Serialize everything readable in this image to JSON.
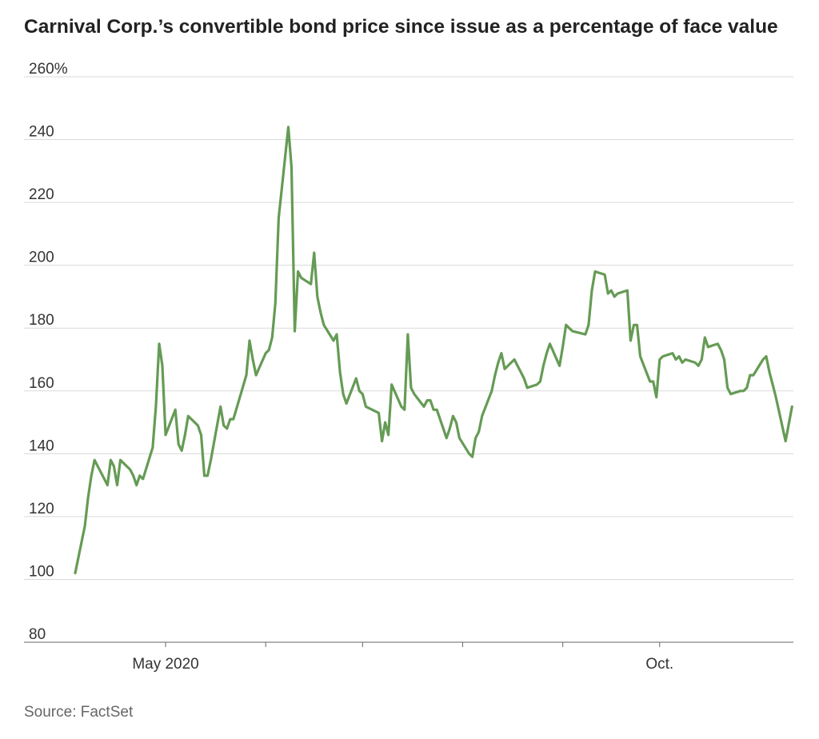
{
  "header": {
    "title": "Carnival Corp.’s convertible bond price since issue as a percentage of face value"
  },
  "footer": {
    "source": "Source: FactSet"
  },
  "colors": {
    "line": "#659b55",
    "grid": "#d9d9d9",
    "axis": "#666666"
  },
  "chart_data": {
    "type": "line",
    "title": "Carnival Corp.’s convertible bond price since issue as a percentage of face value",
    "xlabel": "",
    "ylabel": "",
    "ylim": [
      80,
      260
    ],
    "yticks": [
      {
        "value": 80,
        "label": "80"
      },
      {
        "value": 100,
        "label": "100"
      },
      {
        "value": 120,
        "label": "120"
      },
      {
        "value": 140,
        "label": "140"
      },
      {
        "value": 160,
        "label": "160"
      },
      {
        "value": 180,
        "label": "180"
      },
      {
        "value": 200,
        "label": "200"
      },
      {
        "value": 220,
        "label": "220"
      },
      {
        "value": 240,
        "label": "240"
      },
      {
        "value": 260,
        "label": "260%"
      }
    ],
    "xlim": [
      "2020-04-03",
      "2020-11-03"
    ],
    "month_ticks": [
      "2020-05-01",
      "2020-06-01",
      "2020-07-01",
      "2020-08-01",
      "2020-09-01",
      "2020-10-01"
    ],
    "xtick_labels": [
      {
        "date": "2020-05-01",
        "label": "May 2020"
      },
      {
        "date": "2020-10-01",
        "label": "Oct."
      }
    ],
    "grid": true,
    "series": [
      {
        "values": [
          [
            "2020-04-03",
            102
          ],
          [
            "2020-04-06",
            117
          ],
          [
            "2020-04-07",
            126
          ],
          [
            "2020-04-08",
            133
          ],
          [
            "2020-04-09",
            138
          ],
          [
            "2020-04-13",
            130
          ],
          [
            "2020-04-14",
            138
          ],
          [
            "2020-04-15",
            136
          ],
          [
            "2020-04-16",
            130
          ],
          [
            "2020-04-17",
            138
          ],
          [
            "2020-04-20",
            135
          ],
          [
            "2020-04-21",
            133
          ],
          [
            "2020-04-22",
            130
          ],
          [
            "2020-04-23",
            133
          ],
          [
            "2020-04-24",
            132
          ],
          [
            "2020-04-27",
            142
          ],
          [
            "2020-04-28",
            155
          ],
          [
            "2020-04-29",
            175
          ],
          [
            "2020-04-30",
            168
          ],
          [
            "2020-05-01",
            146
          ],
          [
            "2020-05-04",
            154
          ],
          [
            "2020-05-05",
            143
          ],
          [
            "2020-05-06",
            141
          ],
          [
            "2020-05-07",
            146
          ],
          [
            "2020-05-08",
            152
          ],
          [
            "2020-05-11",
            149
          ],
          [
            "2020-05-12",
            146
          ],
          [
            "2020-05-13",
            133
          ],
          [
            "2020-05-14",
            133
          ],
          [
            "2020-05-15",
            138
          ],
          [
            "2020-05-18",
            155
          ],
          [
            "2020-05-19",
            149
          ],
          [
            "2020-05-20",
            148
          ],
          [
            "2020-05-21",
            151
          ],
          [
            "2020-05-22",
            151
          ],
          [
            "2020-05-26",
            165
          ],
          [
            "2020-05-27",
            176
          ],
          [
            "2020-05-28",
            170
          ],
          [
            "2020-05-29",
            165
          ],
          [
            "2020-06-01",
            172
          ],
          [
            "2020-06-02",
            173
          ],
          [
            "2020-06-03",
            177
          ],
          [
            "2020-06-04",
            188
          ],
          [
            "2020-06-05",
            215
          ],
          [
            "2020-06-08",
            244
          ],
          [
            "2020-06-09",
            231
          ],
          [
            "2020-06-10",
            179
          ],
          [
            "2020-06-11",
            198
          ],
          [
            "2020-06-12",
            196
          ],
          [
            "2020-06-15",
            194
          ],
          [
            "2020-06-16",
            204
          ],
          [
            "2020-06-17",
            190
          ],
          [
            "2020-06-18",
            185
          ],
          [
            "2020-06-19",
            181
          ],
          [
            "2020-06-22",
            176
          ],
          [
            "2020-06-23",
            178
          ],
          [
            "2020-06-24",
            166
          ],
          [
            "2020-06-25",
            159
          ],
          [
            "2020-06-26",
            156
          ],
          [
            "2020-06-29",
            164
          ],
          [
            "2020-06-30",
            160
          ],
          [
            "2020-07-01",
            159
          ],
          [
            "2020-07-02",
            155
          ],
          [
            "2020-07-06",
            153
          ],
          [
            "2020-07-07",
            144
          ],
          [
            "2020-07-08",
            150
          ],
          [
            "2020-07-09",
            146
          ],
          [
            "2020-07-10",
            162
          ],
          [
            "2020-07-13",
            155
          ],
          [
            "2020-07-14",
            154
          ],
          [
            "2020-07-15",
            178
          ],
          [
            "2020-07-16",
            161
          ],
          [
            "2020-07-17",
            159
          ],
          [
            "2020-07-20",
            155
          ],
          [
            "2020-07-21",
            157
          ],
          [
            "2020-07-22",
            157
          ],
          [
            "2020-07-23",
            154
          ],
          [
            "2020-07-24",
            154
          ],
          [
            "2020-07-27",
            145
          ],
          [
            "2020-07-28",
            148
          ],
          [
            "2020-07-29",
            152
          ],
          [
            "2020-07-30",
            150
          ],
          [
            "2020-07-31",
            145
          ],
          [
            "2020-08-03",
            140
          ],
          [
            "2020-08-04",
            139
          ],
          [
            "2020-08-05",
            145
          ],
          [
            "2020-08-06",
            147
          ],
          [
            "2020-08-07",
            152
          ],
          [
            "2020-08-10",
            160
          ],
          [
            "2020-08-11",
            165
          ],
          [
            "2020-08-12",
            169
          ],
          [
            "2020-08-13",
            172
          ],
          [
            "2020-08-14",
            167
          ],
          [
            "2020-08-17",
            170
          ],
          [
            "2020-08-18",
            168
          ],
          [
            "2020-08-19",
            166
          ],
          [
            "2020-08-20",
            164
          ],
          [
            "2020-08-21",
            161
          ],
          [
            "2020-08-24",
            162
          ],
          [
            "2020-08-25",
            163
          ],
          [
            "2020-08-26",
            168
          ],
          [
            "2020-08-27",
            172
          ],
          [
            "2020-08-28",
            175
          ],
          [
            "2020-08-31",
            168
          ],
          [
            "2020-09-01",
            174
          ],
          [
            "2020-09-02",
            181
          ],
          [
            "2020-09-03",
            180
          ],
          [
            "2020-09-04",
            179
          ],
          [
            "2020-09-08",
            178
          ],
          [
            "2020-09-09",
            181
          ],
          [
            "2020-09-10",
            192
          ],
          [
            "2020-09-11",
            198
          ],
          [
            "2020-09-14",
            197
          ],
          [
            "2020-09-15",
            191
          ],
          [
            "2020-09-16",
            192
          ],
          [
            "2020-09-17",
            190
          ],
          [
            "2020-09-18",
            191
          ],
          [
            "2020-09-21",
            192
          ],
          [
            "2020-09-22",
            176
          ],
          [
            "2020-09-23",
            181
          ],
          [
            "2020-09-24",
            181
          ],
          [
            "2020-09-25",
            171
          ],
          [
            "2020-09-28",
            163
          ],
          [
            "2020-09-29",
            163
          ],
          [
            "2020-09-30",
            158
          ],
          [
            "2020-10-01",
            170
          ],
          [
            "2020-10-02",
            171
          ],
          [
            "2020-10-05",
            172
          ],
          [
            "2020-10-06",
            170
          ],
          [
            "2020-10-07",
            171
          ],
          [
            "2020-10-08",
            169
          ],
          [
            "2020-10-09",
            170
          ],
          [
            "2020-10-12",
            169
          ],
          [
            "2020-10-13",
            168
          ],
          [
            "2020-10-14",
            170
          ],
          [
            "2020-10-15",
            177
          ],
          [
            "2020-10-16",
            174
          ],
          [
            "2020-10-19",
            175
          ],
          [
            "2020-10-20",
            173
          ],
          [
            "2020-10-21",
            170
          ],
          [
            "2020-10-22",
            161
          ],
          [
            "2020-10-23",
            159
          ],
          [
            "2020-10-26",
            160
          ],
          [
            "2020-10-27",
            160
          ],
          [
            "2020-10-28",
            161
          ],
          [
            "2020-10-29",
            165
          ],
          [
            "2020-10-30",
            165
          ],
          [
            "2020-11-02",
            170
          ],
          [
            "2020-11-03",
            171
          ],
          [
            "2020-11-04",
            166
          ],
          [
            "2020-11-05",
            162
          ],
          [
            "2020-11-06",
            158
          ],
          [
            "2020-11-09",
            144
          ],
          [
            "2020-11-11",
            155
          ]
        ]
      }
    ]
  }
}
